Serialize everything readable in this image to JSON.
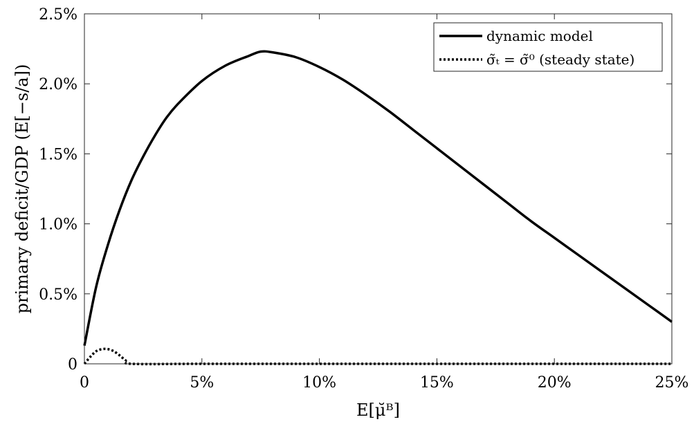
{
  "chart_data": {
    "type": "line",
    "xlabel": "E[μ̆ᴮ]",
    "ylabel": "primary deficit/GDP (E[−s/a])",
    "xlim": [
      0,
      25
    ],
    "ylim": [
      0,
      2.5
    ],
    "x_unit": "%",
    "y_unit": "%",
    "x_ticks": [
      "0",
      "5%",
      "10%",
      "15%",
      "20%",
      "25%"
    ],
    "y_ticks": [
      "0",
      "0.5%",
      "1.0%",
      "1.5%",
      "2.0%",
      "2.5%"
    ],
    "grid": false,
    "legend_position": "top-right",
    "series": [
      {
        "name": "dynamic model",
        "style": "solid",
        "color": "#000000",
        "x": [
          0,
          0.5,
          1,
          1.5,
          2,
          2.5,
          3,
          3.5,
          4,
          5,
          6,
          7,
          7.5,
          8,
          9,
          10,
          11,
          12,
          13,
          14,
          15,
          16,
          17,
          18,
          19,
          20,
          21,
          22,
          23,
          24,
          25
        ],
        "y": [
          0.13,
          0.55,
          0.85,
          1.1,
          1.31,
          1.48,
          1.63,
          1.76,
          1.86,
          2.02,
          2.13,
          2.2,
          2.23,
          2.225,
          2.19,
          2.12,
          2.03,
          1.92,
          1.8,
          1.67,
          1.54,
          1.41,
          1.28,
          1.15,
          1.02,
          0.9,
          0.78,
          0.66,
          0.54,
          0.42,
          0.3
        ]
      },
      {
        "name": "σ̃ₜ = σ̃⁰ (steady state)",
        "style": "dotted",
        "color": "#000000",
        "x": [
          0,
          0.25,
          0.5,
          0.75,
          1,
          1.25,
          1.5,
          1.75,
          2,
          5,
          10,
          15,
          20,
          25
        ],
        "y": [
          0.0,
          0.05,
          0.09,
          0.105,
          0.105,
          0.09,
          0.06,
          0.025,
          0.0,
          0.0,
          0.0,
          0.0,
          0.0,
          0.0
        ]
      }
    ]
  }
}
